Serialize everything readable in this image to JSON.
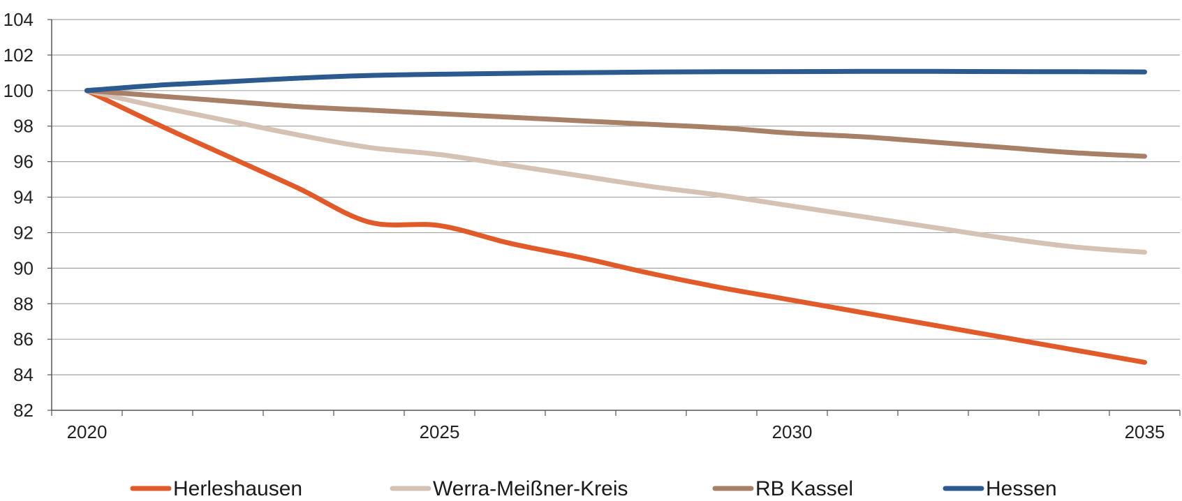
{
  "chart_data": {
    "type": "line",
    "x": [
      2020,
      2021,
      2022,
      2023,
      2024,
      2025,
      2026,
      2027,
      2028,
      2029,
      2030,
      2031,
      2032,
      2033,
      2034,
      2035
    ],
    "x_tick_labels": [
      "2020",
      "2025",
      "2030",
      "2035"
    ],
    "y_tick_labels": [
      "82",
      "84",
      "86",
      "88",
      "90",
      "92",
      "94",
      "96",
      "98",
      "100",
      "102",
      "104"
    ],
    "ylim": [
      82,
      104
    ],
    "xlim": [
      2019.5,
      2035.5
    ],
    "grid": true,
    "legend_position": "bottom",
    "series": [
      {
        "name": "Herleshausen",
        "color": "#E05A2A",
        "values": [
          100,
          98.1,
          96.3,
          94.5,
          92.6,
          92.4,
          91.4,
          90.6,
          89.7,
          88.9,
          88.2,
          87.5,
          86.8,
          86.1,
          85.4,
          84.7
        ]
      },
      {
        "name": "Werra-Meißner-Kreis",
        "color": "#D6C2B4",
        "values": [
          100,
          99.1,
          98.3,
          97.5,
          96.8,
          96.4,
          95.8,
          95.2,
          94.6,
          94.1,
          93.5,
          92.9,
          92.3,
          91.7,
          91.2,
          90.9
        ]
      },
      {
        "name": "RB Kassel",
        "color": "#A88068",
        "values": [
          100,
          99.7,
          99.4,
          99.1,
          98.9,
          98.7,
          98.5,
          98.3,
          98.1,
          97.9,
          97.6,
          97.4,
          97.1,
          96.8,
          96.5,
          96.3
        ]
      },
      {
        "name": "Hessen",
        "color": "#2D5A8E",
        "values": [
          100,
          100.3,
          100.5,
          100.7,
          100.85,
          100.92,
          100.97,
          101.01,
          101.04,
          101.06,
          101.07,
          101.08,
          101.08,
          101.07,
          101.06,
          101.05
        ]
      }
    ]
  }
}
